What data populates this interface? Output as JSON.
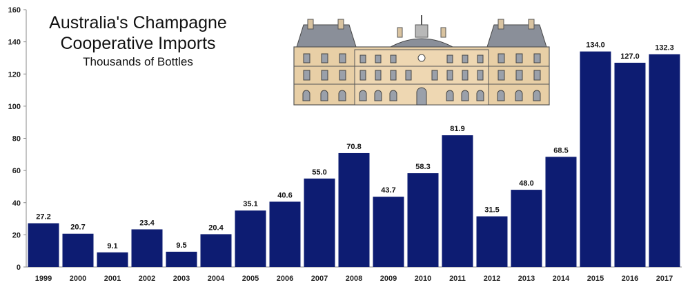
{
  "chart_data": {
    "type": "bar",
    "title_line1": "Australia's Champagne",
    "title_line2": "Cooperative Imports",
    "subtitle": "Thousands of Bottles",
    "categories": [
      "1999",
      "2000",
      "2001",
      "2002",
      "2003",
      "2004",
      "2005",
      "2006",
      "2007",
      "2008",
      "2009",
      "2010",
      "2011",
      "2012",
      "2013",
      "2014",
      "2015",
      "2016",
      "2017"
    ],
    "values": [
      27.2,
      20.7,
      9.1,
      23.4,
      9.5,
      20.4,
      35.1,
      40.6,
      55.0,
      70.8,
      43.7,
      58.3,
      81.9,
      31.5,
      48.0,
      68.5,
      134.0,
      127.0,
      132.3
    ],
    "data_labels": [
      "27.2",
      "20.7",
      "9.1",
      "23.4",
      "9.5",
      "20.4",
      "35.1",
      "40.6",
      "55.0",
      "70.8",
      "43.7",
      "58.3",
      "81.9",
      "31.5",
      "48.0",
      "68.5",
      "134.0",
      "127.0",
      "132.3"
    ],
    "yticks": [
      0,
      20,
      40,
      60,
      80,
      100,
      120,
      140,
      160
    ],
    "ylim": [
      0,
      160
    ],
    "grid": false,
    "bar_color": "#0d1c72",
    "image_icon": "chateau-building-illustration"
  }
}
